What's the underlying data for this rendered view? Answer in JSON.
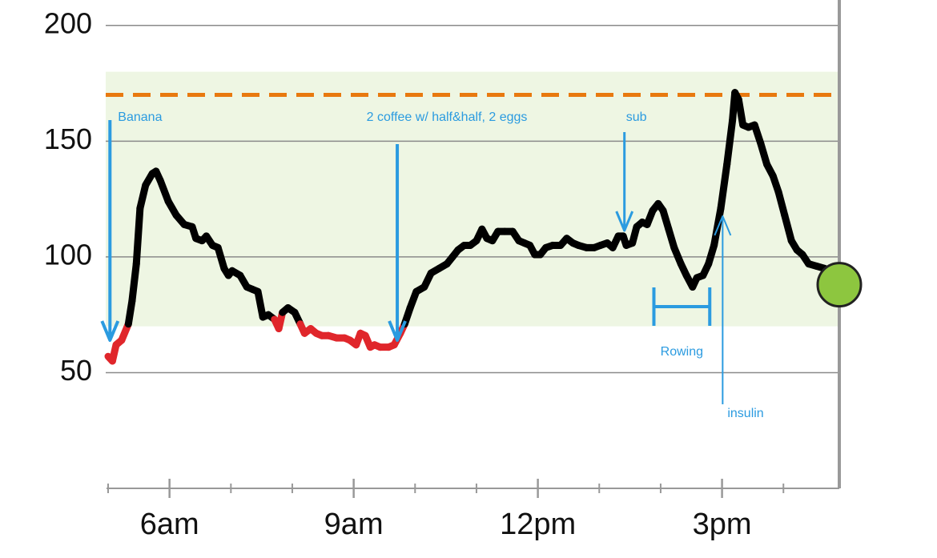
{
  "chart_data": {
    "type": "line",
    "x": [
      5.0,
      5.07,
      5.13,
      5.22,
      5.33,
      5.39,
      5.46,
      5.52,
      5.61,
      5.72,
      5.78,
      5.85,
      5.98,
      6.11,
      6.24,
      6.37,
      6.43,
      6.53,
      6.6,
      6.7,
      6.79,
      6.89,
      6.96,
      7.02,
      7.15,
      7.26,
      7.35,
      7.44,
      7.52,
      7.61,
      7.71,
      7.78,
      7.84,
      7.93,
      8.04,
      8.13,
      8.2,
      8.3,
      8.39,
      8.48,
      8.59,
      8.72,
      8.85,
      8.94,
      9.04,
      9.11,
      9.19,
      9.27,
      9.34,
      9.43,
      9.57,
      9.66,
      9.76,
      9.83,
      9.92,
      10.02,
      10.15,
      10.26,
      10.39,
      10.52,
      10.61,
      10.7,
      10.8,
      10.9,
      11.0,
      11.09,
      11.17,
      11.26,
      11.35,
      11.46,
      11.59,
      11.69,
      11.78,
      11.87,
      11.95,
      12.04,
      12.13,
      12.24,
      12.37,
      12.47,
      12.57,
      12.66,
      12.79,
      12.92,
      13.02,
      13.13,
      13.22,
      13.31,
      13.39,
      13.44,
      13.54,
      13.61,
      13.7,
      13.78,
      13.87,
      13.96,
      14.04,
      14.13,
      14.22,
      14.33,
      14.42,
      14.52,
      14.59,
      14.69,
      14.78,
      14.87,
      14.98,
      15.08,
      15.17,
      15.21,
      15.27,
      15.34,
      15.43,
      15.53,
      15.63,
      15.73,
      15.83,
      15.92,
      16.02,
      16.13,
      16.22,
      16.31,
      16.41,
      16.54,
      16.67,
      16.87,
      16.91
    ],
    "values": [
      57,
      55,
      62,
      64,
      71,
      81,
      97,
      121,
      131,
      136,
      137,
      133,
      124,
      118,
      114,
      113,
      108,
      107,
      109,
      105,
      104,
      95,
      92,
      94,
      92,
      87,
      86,
      85,
      74,
      75,
      73,
      69,
      76,
      78,
      76,
      71,
      67,
      69,
      67,
      66,
      66,
      65,
      65,
      64,
      62,
      67,
      66,
      61,
      62,
      61,
      61,
      62,
      67,
      71,
      78,
      85,
      87,
      93,
      95,
      97,
      100,
      103,
      105,
      105,
      107,
      112,
      108,
      107,
      111,
      111,
      111,
      107,
      106,
      105,
      101,
      101,
      104,
      105,
      105,
      108,
      106,
      105,
      104,
      104,
      105,
      106,
      104,
      109,
      109,
      105,
      106,
      113,
      115,
      114,
      120,
      123,
      120,
      112,
      104,
      97,
      92,
      87,
      91,
      92,
      97,
      105,
      121,
      140,
      159,
      171,
      168,
      157,
      156,
      157,
      149,
      140,
      135,
      128,
      118,
      107,
      103,
      101,
      97,
      96,
      95,
      92,
      88
    ],
    "color": "#000000",
    "low_color": "#e0262b",
    "current_color": "#8dc63f",
    "target_range": [
      70,
      180
    ],
    "target_color": "#eef6e3",
    "high_line": 170,
    "high_line_color": "#e8790f",
    "xlim": [
      5,
      16.91
    ],
    "xticks": [
      {
        "value": 6,
        "label": "6am"
      },
      {
        "value": 9,
        "label": "9am"
      },
      {
        "value": 12,
        "label": "12pm"
      },
      {
        "value": 15,
        "label": "3pm"
      }
    ],
    "xminorticks": [
      5,
      7,
      8,
      10,
      11,
      13,
      14,
      16
    ],
    "ylim": [
      0,
      211
    ],
    "yticks": [
      50,
      100,
      150,
      200
    ],
    "grid": true,
    "annotation_color": "#2b9be0",
    "annotations": [
      {
        "text": "Banana",
        "x": 5.03
      },
      {
        "text": "2 coffee w/ half&half, 2 eggs",
        "x": 9.71
      },
      {
        "text": "sub",
        "x": 13.41
      },
      {
        "text": "Rowing",
        "x": [
          13.89,
          14.8
        ]
      },
      {
        "text": "insulin",
        "x": 15.01
      }
    ]
  }
}
